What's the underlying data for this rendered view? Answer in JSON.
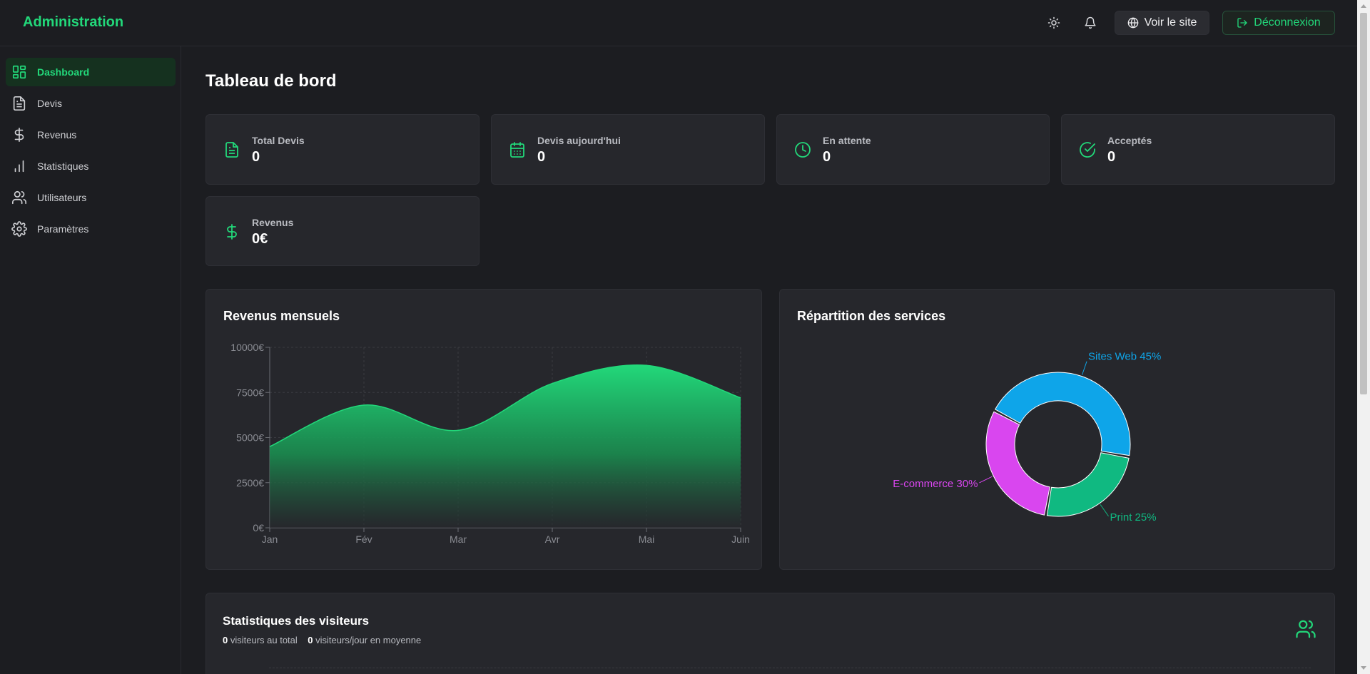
{
  "header": {
    "brand": "Administration",
    "view_site_label": "Voir le site",
    "logout_label": "Déconnexion"
  },
  "sidebar": {
    "items": [
      {
        "label": "Dashboard",
        "icon": "dashboard-icon",
        "active": true
      },
      {
        "label": "Devis",
        "icon": "file-text-icon"
      },
      {
        "label": "Revenus",
        "icon": "dollar-icon"
      },
      {
        "label": "Statistiques",
        "icon": "bar-chart-icon"
      },
      {
        "label": "Utilisateurs",
        "icon": "users-icon"
      },
      {
        "label": "Paramètres",
        "icon": "gear-icon"
      }
    ]
  },
  "main": {
    "title": "Tableau de bord",
    "stats": [
      {
        "label": "Total Devis",
        "value": "0",
        "icon": "file-text-icon"
      },
      {
        "label": "Devis aujourd'hui",
        "value": "0",
        "icon": "calendar-icon"
      },
      {
        "label": "En attente",
        "value": "0",
        "icon": "clock-icon"
      },
      {
        "label": "Acceptés",
        "value": "0",
        "icon": "check-circle-icon"
      },
      {
        "label": "Revenus",
        "value": "0€",
        "icon": "dollar-icon"
      }
    ],
    "revenue_panel_title": "Revenus mensuels",
    "services_panel_title": "Répartition des services",
    "visitors": {
      "title": "Statistiques des visiteurs",
      "total": "0",
      "total_suffix": "visiteurs au total",
      "per_day": "0",
      "per_day_suffix": "visiteurs/jour en moyenne"
    }
  },
  "colors": {
    "accent": "#22d87a",
    "sites_web": "#0ea5e9",
    "ecommerce": "#d946ef",
    "print": "#10b981"
  },
  "chart_data": [
    {
      "type": "area",
      "title": "Revenus mensuels",
      "categories": [
        "Jan",
        "Fév",
        "Mar",
        "Avr",
        "Mai",
        "Juin"
      ],
      "values": [
        4500,
        6800,
        5400,
        8000,
        9000,
        7200
      ],
      "yticks": [
        "0€",
        "2500€",
        "5000€",
        "7500€",
        "10000€"
      ],
      "ylim": [
        0,
        10000
      ],
      "grid": true
    },
    {
      "type": "pie",
      "title": "Répartition des services",
      "slices": [
        {
          "label": "Sites Web",
          "value": 45,
          "text": "Sites Web 45%"
        },
        {
          "label": "Print",
          "value": 25,
          "text": "Print 25%"
        },
        {
          "label": "E-commerce",
          "value": 30,
          "text": "E-commerce 30%"
        }
      ]
    }
  ]
}
